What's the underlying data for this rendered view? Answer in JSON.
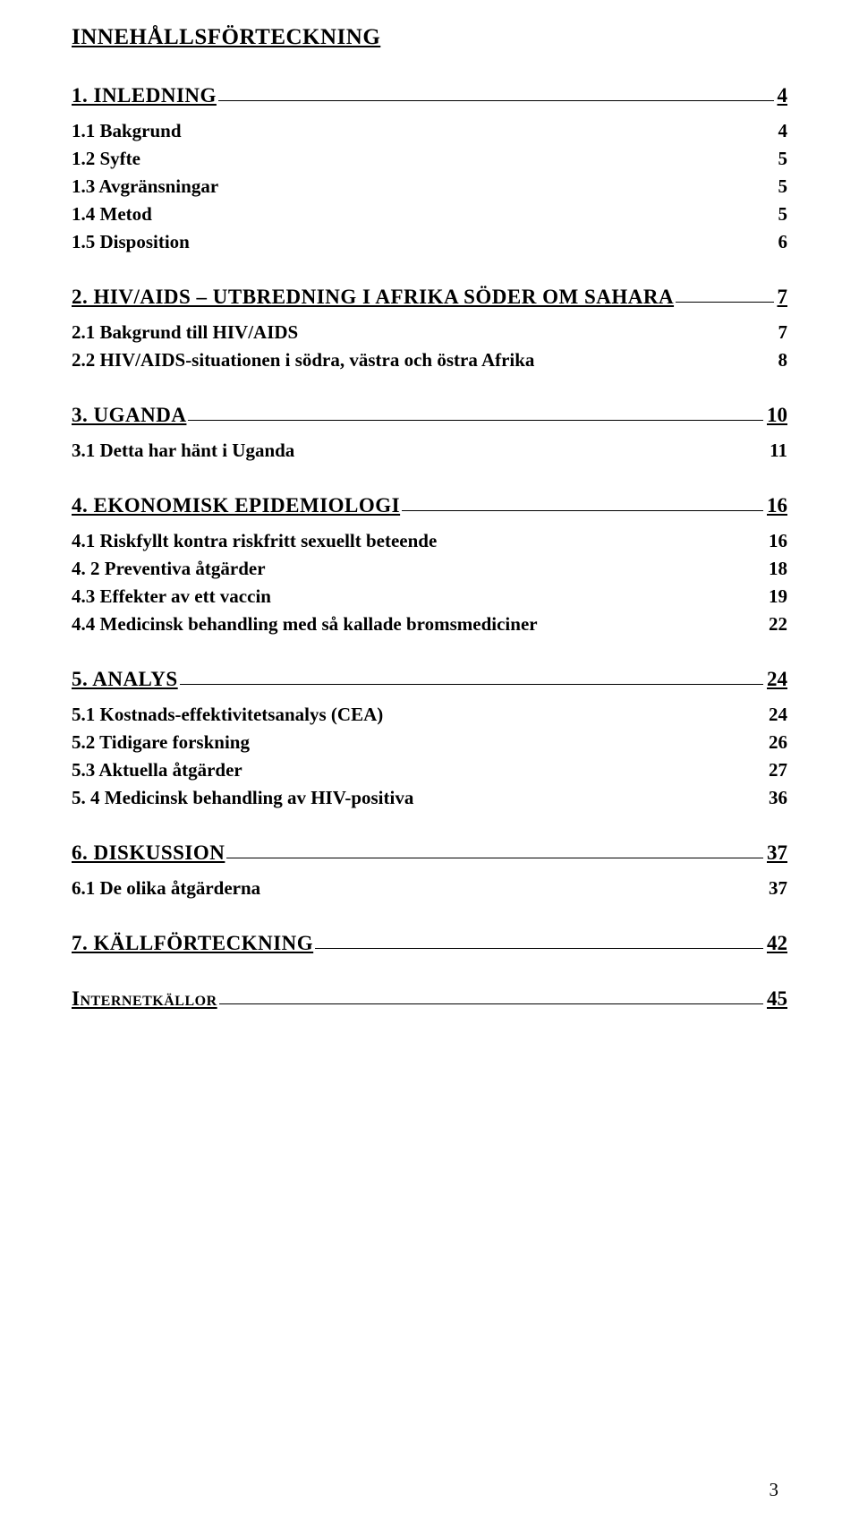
{
  "doc": {
    "toc_title": "INNEHÅLLSFÖRTECKNING",
    "page_number": "3"
  },
  "sections": {
    "s1": {
      "label": "1. INLEDNING",
      "page": "4"
    },
    "s1_1": {
      "label": "1.1 Bakgrund",
      "page": "4"
    },
    "s1_2": {
      "label": "1.2 Syfte",
      "page": "5"
    },
    "s1_3": {
      "label": "1.3 Avgränsningar",
      "page": "5"
    },
    "s1_4": {
      "label": "1.4 Metod",
      "page": "5"
    },
    "s1_5": {
      "label": "1.5 Disposition",
      "page": "6"
    },
    "s2": {
      "label": "2. HIV/AIDS – UTBREDNING I AFRIKA SÖDER OM SAHARA",
      "page": "7"
    },
    "s2_1": {
      "label": "2.1 Bakgrund till HIV/AIDS",
      "page": "7"
    },
    "s2_2": {
      "label": "2.2 HIV/AIDS-situationen i södra, västra och östra Afrika",
      "page": "8"
    },
    "s3": {
      "label": "3. UGANDA",
      "page": "10"
    },
    "s3_1": {
      "label": "3.1 Detta har hänt i Uganda",
      "page": "11"
    },
    "s4": {
      "label": "4. EKONOMISK EPIDEMIOLOGI",
      "page": "16"
    },
    "s4_1": {
      "label": "4.1 Riskfyllt kontra riskfritt sexuellt beteende",
      "page": "16"
    },
    "s4_2": {
      "label": "4. 2 Preventiva åtgärder",
      "page": "18"
    },
    "s4_3": {
      "label": "4.3 Effekter av ett vaccin",
      "page": "19"
    },
    "s4_4": {
      "label": "4.4 Medicinsk behandling med så kallade bromsmediciner",
      "page": "22"
    },
    "s5": {
      "label": "5. ANALYS",
      "page": "24"
    },
    "s5_1": {
      "label": "5.1 Kostnads-effektivitetsanalys (CEA)",
      "page": "24"
    },
    "s5_2": {
      "label": "5.2 Tidigare forskning",
      "page": "26"
    },
    "s5_3": {
      "label": "5.3 Aktuella åtgärder",
      "page": "27"
    },
    "s5_4": {
      "label": "5. 4 Medicinsk behandling av HIV-positiva",
      "page": "36"
    },
    "s6": {
      "label": "6. DISKUSSION",
      "page": "37"
    },
    "s6_1": {
      "label": "6.1 De olika åtgärderna",
      "page": "37"
    },
    "s7": {
      "label": "7. KÄLLFÖRTECKNING",
      "page": "42"
    },
    "s8": {
      "label": "Internetkällor",
      "page": "45"
    }
  }
}
